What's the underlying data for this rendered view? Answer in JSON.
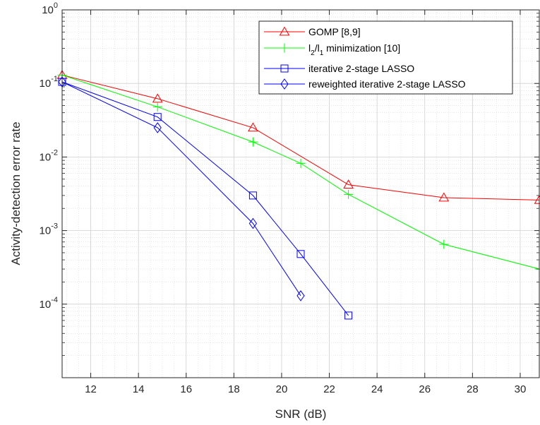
{
  "chart_data": {
    "type": "line",
    "xlabel": "SNR (dB)",
    "ylabel": "Activity-detection error rate",
    "xlim": [
      10.8,
      30.8
    ],
    "ylim": [
      1e-05,
      1
    ],
    "yscale": "log",
    "grid": true,
    "minor_grid": true,
    "legend_position": "top-right",
    "x_ticks": [
      12,
      14,
      16,
      18,
      20,
      22,
      24,
      26,
      28,
      30
    ],
    "x_tick_labels": [
      "12",
      "14",
      "16",
      "18",
      "20",
      "22",
      "24",
      "26",
      "28",
      "30"
    ],
    "y_ticks": [
      {
        "value": 1,
        "base": "10",
        "exp": "0"
      },
      {
        "value": 0.1,
        "base": "10",
        "exp": "-1"
      },
      {
        "value": 0.01,
        "base": "10",
        "exp": "-2"
      },
      {
        "value": 0.001,
        "base": "10",
        "exp": "-3"
      },
      {
        "value": 0.0001,
        "base": "10",
        "exp": "-4"
      }
    ],
    "series": [
      {
        "name": "GOMP [8,9]",
        "color": "#ff0000",
        "marker": "triangle",
        "x": [
          10.8,
          14.8,
          18.8,
          22.8,
          26.8,
          30.8
        ],
        "y": [
          0.13,
          0.062,
          0.025,
          0.0042,
          0.0028,
          0.0026
        ]
      },
      {
        "name": "l2/l1 minimization [10]",
        "label_parts": {
          "a": "l",
          "a_sub": "2",
          "sep": "/l",
          "b_sub": "1",
          "rest": " minimization [10]"
        },
        "color": "#00ff00",
        "marker": "plus",
        "x": [
          10.8,
          14.8,
          18.8,
          20.8,
          22.8,
          26.8,
          30.8
        ],
        "y": [
          0.13,
          0.048,
          0.016,
          0.0082,
          0.0031,
          0.00065,
          0.0003
        ]
      },
      {
        "name": "iterative 2-stage LASSO",
        "color": "#0000ff",
        "marker": "square",
        "x": [
          10.8,
          14.8,
          18.8,
          20.8,
          22.8
        ],
        "y": [
          0.105,
          0.035,
          0.003,
          0.00048,
          7e-05
        ]
      },
      {
        "name": "reweighted iterative 2-stage LASSO",
        "color": "#0000ff",
        "marker": "diamond",
        "x": [
          10.8,
          14.8,
          18.8,
          20.8
        ],
        "y": [
          0.105,
          0.025,
          0.00125,
          0.00013
        ]
      }
    ]
  }
}
